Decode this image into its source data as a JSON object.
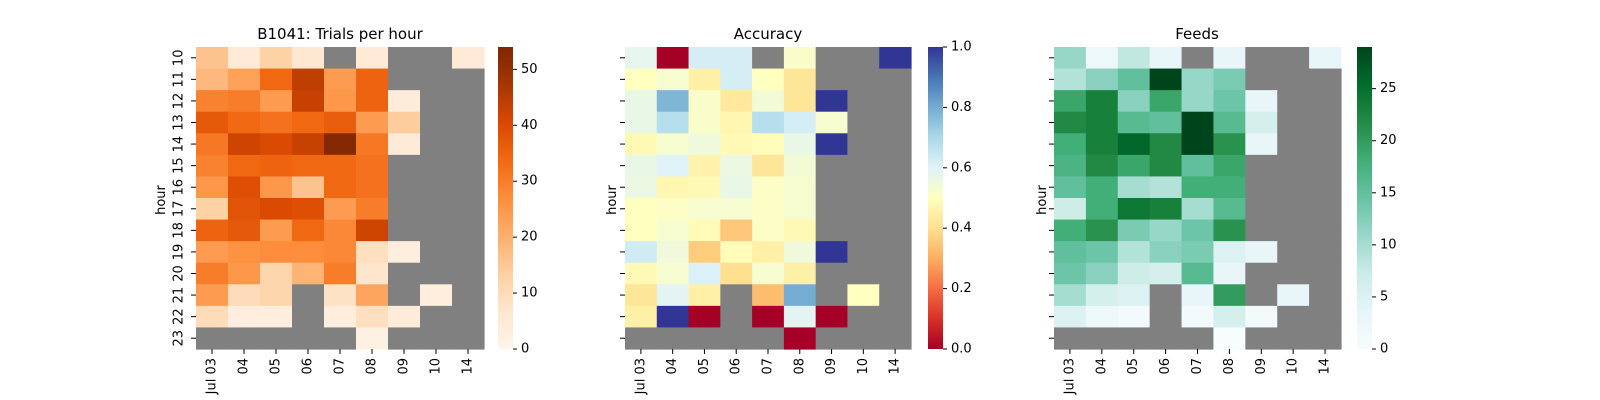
{
  "chart_data": [
    {
      "type": "heatmap",
      "title": "B1041: Trials per hour",
      "ylabel": "hour",
      "x_categories": [
        "Jul 03",
        "04",
        "05",
        "06",
        "07",
        "08",
        "09",
        "10",
        "14"
      ],
      "y_categories": [
        "10",
        "11",
        "12",
        "13",
        "14",
        "15",
        "16",
        "17",
        "18",
        "19",
        "20",
        "21",
        "22",
        "23"
      ],
      "values": [
        [
          16,
          5,
          13,
          6,
          null,
          5,
          null,
          null,
          5
        ],
        [
          18,
          23,
          34,
          44,
          24,
          35,
          null,
          null,
          null
        ],
        [
          29,
          30,
          24,
          43,
          25,
          35,
          4,
          null,
          null
        ],
        [
          37,
          34,
          32,
          34,
          36,
          24,
          14,
          null,
          null
        ],
        [
          31,
          42,
          40,
          43,
          53,
          31,
          5,
          null,
          null
        ],
        [
          29,
          34,
          35,
          34,
          34,
          32,
          null,
          null,
          null
        ],
        [
          25,
          39,
          25,
          16,
          34,
          32,
          null,
          null,
          null
        ],
        [
          13,
          38,
          40,
          39,
          24,
          30,
          null,
          null,
          null
        ],
        [
          35,
          37,
          24,
          34,
          28,
          42,
          null,
          null,
          null
        ],
        [
          24,
          26,
          27,
          27,
          28,
          9,
          3,
          null,
          null
        ],
        [
          30,
          25,
          12,
          19,
          30,
          7,
          null,
          null,
          null
        ],
        [
          24,
          10,
          12,
          null,
          8,
          22,
          null,
          3,
          null
        ],
        [
          10,
          3,
          3,
          null,
          3,
          9,
          4,
          null,
          null
        ],
        [
          null,
          null,
          null,
          null,
          null,
          2,
          null,
          null,
          null
        ]
      ],
      "colormap": "Oranges",
      "colorbar": {
        "min": 0,
        "max": 54,
        "ticks": [
          0,
          10,
          20,
          30,
          40,
          50
        ]
      },
      "missing_color": "#808080"
    },
    {
      "type": "heatmap",
      "title": "Accuracy",
      "ylabel": "hour",
      "x_categories": [
        "Jul 03",
        "04",
        "05",
        "06",
        "07",
        "08",
        "09",
        "10",
        "14"
      ],
      "y_categories": [
        "10",
        "11",
        "12",
        "13",
        "14",
        "15",
        "16",
        "17",
        "18",
        "19",
        "20",
        "21",
        "22",
        "23"
      ],
      "values": [
        [
          0.58,
          0.0,
          0.62,
          0.62,
          null,
          0.52,
          null,
          null,
          1.0
        ],
        [
          0.5,
          0.53,
          0.45,
          0.62,
          0.5,
          0.42,
          null,
          null,
          null
        ],
        [
          0.57,
          0.78,
          0.52,
          0.43,
          0.54,
          0.42,
          1.0,
          null,
          null
        ],
        [
          0.57,
          0.68,
          0.52,
          0.47,
          0.68,
          0.62,
          0.53,
          null,
          null
        ],
        [
          0.48,
          0.53,
          0.55,
          0.48,
          0.49,
          0.57,
          1.0,
          null,
          null
        ],
        [
          0.57,
          0.6,
          0.46,
          0.56,
          0.42,
          0.54,
          null,
          null,
          null
        ],
        [
          0.56,
          0.47,
          0.48,
          0.57,
          0.51,
          0.53,
          null,
          null,
          null
        ],
        [
          0.5,
          0.51,
          0.53,
          0.53,
          0.51,
          0.53,
          null,
          null,
          null
        ],
        [
          0.5,
          0.53,
          0.49,
          0.35,
          0.51,
          0.48,
          null,
          null,
          null
        ],
        [
          0.63,
          0.55,
          0.36,
          0.49,
          0.45,
          0.55,
          1.0,
          null,
          null
        ],
        [
          0.48,
          0.53,
          0.61,
          0.4,
          0.53,
          0.45,
          null,
          null,
          null
        ],
        [
          0.42,
          0.59,
          0.45,
          null,
          0.33,
          0.8,
          null,
          0.5,
          null
        ],
        [
          0.45,
          1.0,
          0.0,
          null,
          0.0,
          0.59,
          0.0,
          null,
          null
        ],
        [
          null,
          null,
          null,
          null,
          null,
          0.0,
          null,
          null,
          null
        ]
      ],
      "colormap": "RdYlBu",
      "colorbar": {
        "min": 0.0,
        "max": 1.0,
        "ticks": [
          "0.0",
          "0.2",
          "0.4",
          "0.6",
          "0.8",
          "1.0"
        ]
      },
      "missing_color": "#808080"
    },
    {
      "type": "heatmap",
      "title": "Feeds",
      "ylabel": "hour",
      "x_categories": [
        "Jul 03",
        "04",
        "05",
        "06",
        "07",
        "08",
        "09",
        "10",
        "14"
      ],
      "y_categories": [
        "10",
        "11",
        "12",
        "13",
        "14",
        "15",
        "16",
        "17",
        "18",
        "19",
        "20",
        "21",
        "22",
        "23"
      ],
      "values": [
        [
          11,
          2,
          8,
          3,
          null,
          3,
          null,
          null,
          3
        ],
        [
          9,
          12,
          15,
          29,
          11,
          13,
          null,
          null,
          null
        ],
        [
          19,
          23,
          12,
          19,
          11,
          14,
          3,
          null,
          null
        ],
        [
          22,
          23,
          16,
          15,
          29,
          16,
          6,
          null,
          null
        ],
        [
          18,
          23,
          26,
          22,
          29,
          21,
          3,
          null,
          null
        ],
        [
          17,
          22,
          19,
          22,
          15,
          19,
          null,
          null,
          null
        ],
        [
          15,
          18,
          10,
          9,
          18,
          18,
          null,
          null,
          null
        ],
        [
          7,
          18,
          24,
          23,
          10,
          16,
          null,
          null,
          null
        ],
        [
          18,
          21,
          13,
          11,
          14,
          21,
          null,
          null,
          null
        ],
        [
          15,
          14,
          9,
          12,
          13,
          5,
          3,
          null,
          null
        ],
        [
          14,
          12,
          7,
          6,
          16,
          3,
          null,
          null,
          null
        ],
        [
          10,
          6,
          5,
          null,
          3,
          20,
          null,
          3,
          null
        ],
        [
          5,
          2,
          1,
          null,
          1,
          6,
          1,
          null,
          null
        ],
        [
          null,
          null,
          null,
          null,
          null,
          0,
          null,
          null,
          null
        ]
      ],
      "colormap": "BuGn",
      "colorbar": {
        "min": 0,
        "max": 29,
        "ticks": [
          0,
          5,
          10,
          15,
          20,
          25
        ]
      },
      "missing_color": "#808080"
    }
  ]
}
